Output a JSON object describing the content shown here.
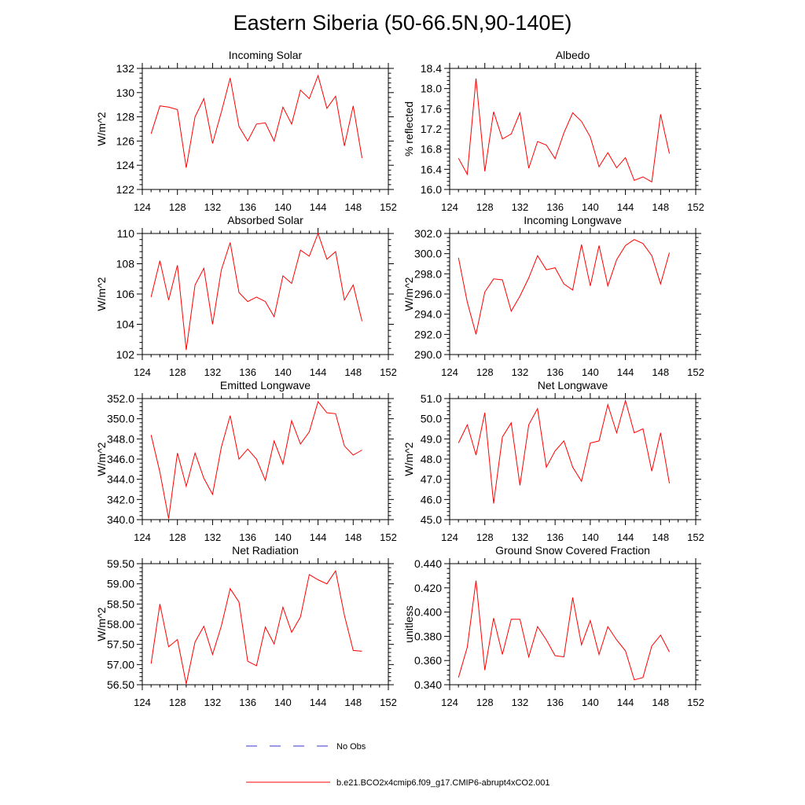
{
  "page": {
    "title": "Eastern Siberia (50-66.5N,90-140E)"
  },
  "legend": {
    "entries": [
      {
        "label": "No Obs",
        "color": "#3333cc",
        "style": "dashed"
      },
      {
        "label": "b.e21.BCO2x4cmip6.f09_g17.CMIP6-abrupt4xCO2.001",
        "color": "#ff0000",
        "style": "solid"
      }
    ]
  },
  "chart_data": [
    {
      "type": "line",
      "title": "Incoming Solar",
      "ylabel": "W/m^2",
      "xlim": [
        124,
        152
      ],
      "xticks": [
        124,
        128,
        132,
        136,
        140,
        144,
        148,
        152
      ],
      "ylim": [
        122,
        132
      ],
      "yticks": [
        "122",
        "124",
        "126",
        "128",
        "130",
        "132"
      ],
      "series": [
        {
          "color": "#ff0000",
          "x": [
            125,
            126,
            127,
            128,
            129,
            130,
            131,
            132,
            133,
            134,
            135,
            136,
            137,
            138,
            139,
            140,
            141,
            142,
            143,
            144,
            145,
            146,
            147,
            148,
            149
          ],
          "y": [
            126.6,
            128.9,
            128.8,
            128.6,
            123.8,
            128.0,
            129.5,
            125.8,
            128.4,
            131.2,
            127.2,
            126.0,
            127.4,
            127.5,
            126.0,
            128.8,
            127.4,
            130.2,
            129.5,
            131.4,
            128.7,
            129.7,
            125.6,
            128.9,
            124.6
          ]
        }
      ]
    },
    {
      "type": "line",
      "title": "Albedo",
      "ylabel": "% reflected",
      "xlim": [
        124,
        152
      ],
      "xticks": [
        124,
        128,
        132,
        136,
        140,
        144,
        148,
        152
      ],
      "ylim": [
        16.0,
        18.4
      ],
      "yticks": [
        "16.0",
        "16.4",
        "16.8",
        "17.2",
        "17.6",
        "18.0",
        "18.4"
      ],
      "series": [
        {
          "color": "#ff0000",
          "x": [
            125,
            126,
            127,
            128,
            129,
            130,
            131,
            132,
            133,
            134,
            135,
            136,
            137,
            138,
            139,
            140,
            141,
            142,
            143,
            144,
            145,
            146,
            147,
            148,
            149
          ],
          "y": [
            16.62,
            16.3,
            18.2,
            16.36,
            17.54,
            17.0,
            17.1,
            17.52,
            16.42,
            16.95,
            16.88,
            16.61,
            17.12,
            17.52,
            17.35,
            17.04,
            16.45,
            16.73,
            16.43,
            16.63,
            16.18,
            16.25,
            16.15,
            17.49,
            16.71
          ]
        }
      ]
    },
    {
      "type": "line",
      "title": "Absorbed Solar",
      "ylabel": "W/m^2",
      "xlim": [
        124,
        152
      ],
      "xticks": [
        124,
        128,
        132,
        136,
        140,
        144,
        148,
        152
      ],
      "ylim": [
        102,
        110
      ],
      "yticks": [
        "102",
        "104",
        "106",
        "108",
        "110"
      ],
      "series": [
        {
          "color": "#ff0000",
          "x": [
            125,
            126,
            127,
            128,
            129,
            130,
            131,
            132,
            133,
            134,
            135,
            136,
            137,
            138,
            139,
            140,
            141,
            142,
            143,
            144,
            145,
            146,
            147,
            148,
            149
          ],
          "y": [
            105.8,
            108.2,
            105.6,
            107.9,
            102.3,
            106.6,
            107.7,
            104.0,
            107.6,
            109.4,
            106.1,
            105.5,
            105.8,
            105.5,
            104.5,
            107.2,
            106.7,
            108.9,
            108.5,
            110.0,
            108.3,
            108.8,
            105.6,
            106.6,
            104.2
          ]
        }
      ]
    },
    {
      "type": "line",
      "title": "Incoming Longwave",
      "ylabel": "W/m^2",
      "xlim": [
        124,
        152
      ],
      "xticks": [
        124,
        128,
        132,
        136,
        140,
        144,
        148,
        152
      ],
      "ylim": [
        290.0,
        302.0
      ],
      "yticks": [
        "290.0",
        "292.0",
        "294.0",
        "296.0",
        "298.0",
        "300.0",
        "302.0"
      ],
      "series": [
        {
          "color": "#ff0000",
          "x": [
            125,
            126,
            127,
            128,
            129,
            130,
            131,
            132,
            133,
            134,
            135,
            136,
            137,
            138,
            139,
            140,
            141,
            142,
            143,
            144,
            145,
            146,
            147,
            148,
            149
          ],
          "y": [
            299.6,
            295.2,
            292.0,
            296.2,
            297.5,
            297.4,
            294.3,
            295.8,
            297.6,
            299.8,
            298.4,
            298.6,
            297.0,
            296.4,
            300.9,
            296.8,
            300.8,
            296.8,
            299.4,
            300.8,
            301.4,
            301.0,
            299.8,
            297.0,
            300.1
          ]
        }
      ]
    },
    {
      "type": "line",
      "title": "Emitted Longwave",
      "ylabel": "W/m^2",
      "xlim": [
        124,
        152
      ],
      "xticks": [
        124,
        128,
        132,
        136,
        140,
        144,
        148,
        152
      ],
      "ylim": [
        340.0,
        352.0
      ],
      "yticks": [
        "340.0",
        "342.0",
        "344.0",
        "346.0",
        "348.0",
        "350.0",
        "352.0"
      ],
      "series": [
        {
          "color": "#ff0000",
          "x": [
            125,
            126,
            127,
            128,
            129,
            130,
            131,
            132,
            133,
            134,
            135,
            136,
            137,
            138,
            139,
            140,
            141,
            142,
            143,
            144,
            145,
            146,
            147,
            148,
            149
          ],
          "y": [
            348.4,
            344.7,
            340.1,
            346.6,
            343.3,
            346.6,
            344.1,
            342.5,
            347.2,
            350.3,
            346.0,
            347.0,
            346.0,
            343.9,
            347.8,
            345.5,
            349.8,
            347.5,
            348.7,
            351.7,
            350.6,
            350.5,
            347.3,
            346.4,
            346.9
          ]
        }
      ]
    },
    {
      "type": "line",
      "title": "Net Longwave",
      "ylabel": "W/m^2",
      "xlim": [
        124,
        152
      ],
      "xticks": [
        124,
        128,
        132,
        136,
        140,
        144,
        148,
        152
      ],
      "ylim": [
        45.0,
        51.0
      ],
      "yticks": [
        "45.0",
        "46.0",
        "47.0",
        "48.0",
        "49.0",
        "50.0",
        "51.0"
      ],
      "series": [
        {
          "color": "#ff0000",
          "x": [
            125,
            126,
            127,
            128,
            129,
            130,
            131,
            132,
            133,
            134,
            135,
            136,
            137,
            138,
            139,
            140,
            141,
            142,
            143,
            144,
            145,
            146,
            147,
            148,
            149
          ],
          "y": [
            48.8,
            49.7,
            48.2,
            50.3,
            45.8,
            49.1,
            49.8,
            46.7,
            49.7,
            50.5,
            47.6,
            48.4,
            48.9,
            47.6,
            46.9,
            48.8,
            48.9,
            50.7,
            49.3,
            50.9,
            49.3,
            49.5,
            47.4,
            49.3,
            46.8
          ]
        }
      ]
    },
    {
      "type": "line",
      "title": "Net Radiation",
      "ylabel": "W/m^2",
      "xlim": [
        124,
        152
      ],
      "xticks": [
        124,
        128,
        132,
        136,
        140,
        144,
        148,
        152
      ],
      "ylim": [
        56.5,
        59.5
      ],
      "yticks": [
        "56.50",
        "57.00",
        "57.50",
        "58.00",
        "58.50",
        "59.00",
        "59.50"
      ],
      "series": [
        {
          "color": "#ff0000",
          "x": [
            125,
            126,
            127,
            128,
            129,
            130,
            131,
            132,
            133,
            134,
            135,
            136,
            137,
            138,
            139,
            140,
            141,
            142,
            143,
            144,
            145,
            146,
            147,
            148,
            149
          ],
          "y": [
            57.02,
            58.5,
            57.44,
            57.62,
            56.52,
            57.56,
            57.95,
            57.25,
            57.96,
            58.88,
            58.55,
            57.08,
            56.97,
            57.93,
            57.51,
            58.42,
            57.8,
            58.18,
            59.23,
            59.1,
            59.0,
            59.32,
            58.22,
            57.35,
            57.33
          ]
        }
      ]
    },
    {
      "type": "line",
      "title": "Ground Snow Covered Fraction",
      "ylabel": "unitless",
      "xlim": [
        124,
        152
      ],
      "xticks": [
        124,
        128,
        132,
        136,
        140,
        144,
        148,
        152
      ],
      "ylim": [
        0.34,
        0.44
      ],
      "yticks": [
        "0.340",
        "0.360",
        "0.380",
        "0.400",
        "0.420",
        "0.440"
      ],
      "series": [
        {
          "color": "#ff0000",
          "x": [
            125,
            126,
            127,
            128,
            129,
            130,
            131,
            132,
            133,
            134,
            135,
            136,
            137,
            138,
            139,
            140,
            141,
            142,
            143,
            144,
            145,
            146,
            147,
            148,
            149
          ],
          "y": [
            0.346,
            0.371,
            0.426,
            0.352,
            0.395,
            0.365,
            0.394,
            0.394,
            0.363,
            0.388,
            0.377,
            0.364,
            0.363,
            0.412,
            0.373,
            0.393,
            0.365,
            0.388,
            0.377,
            0.368,
            0.344,
            0.346,
            0.372,
            0.381,
            0.367
          ]
        }
      ]
    }
  ]
}
